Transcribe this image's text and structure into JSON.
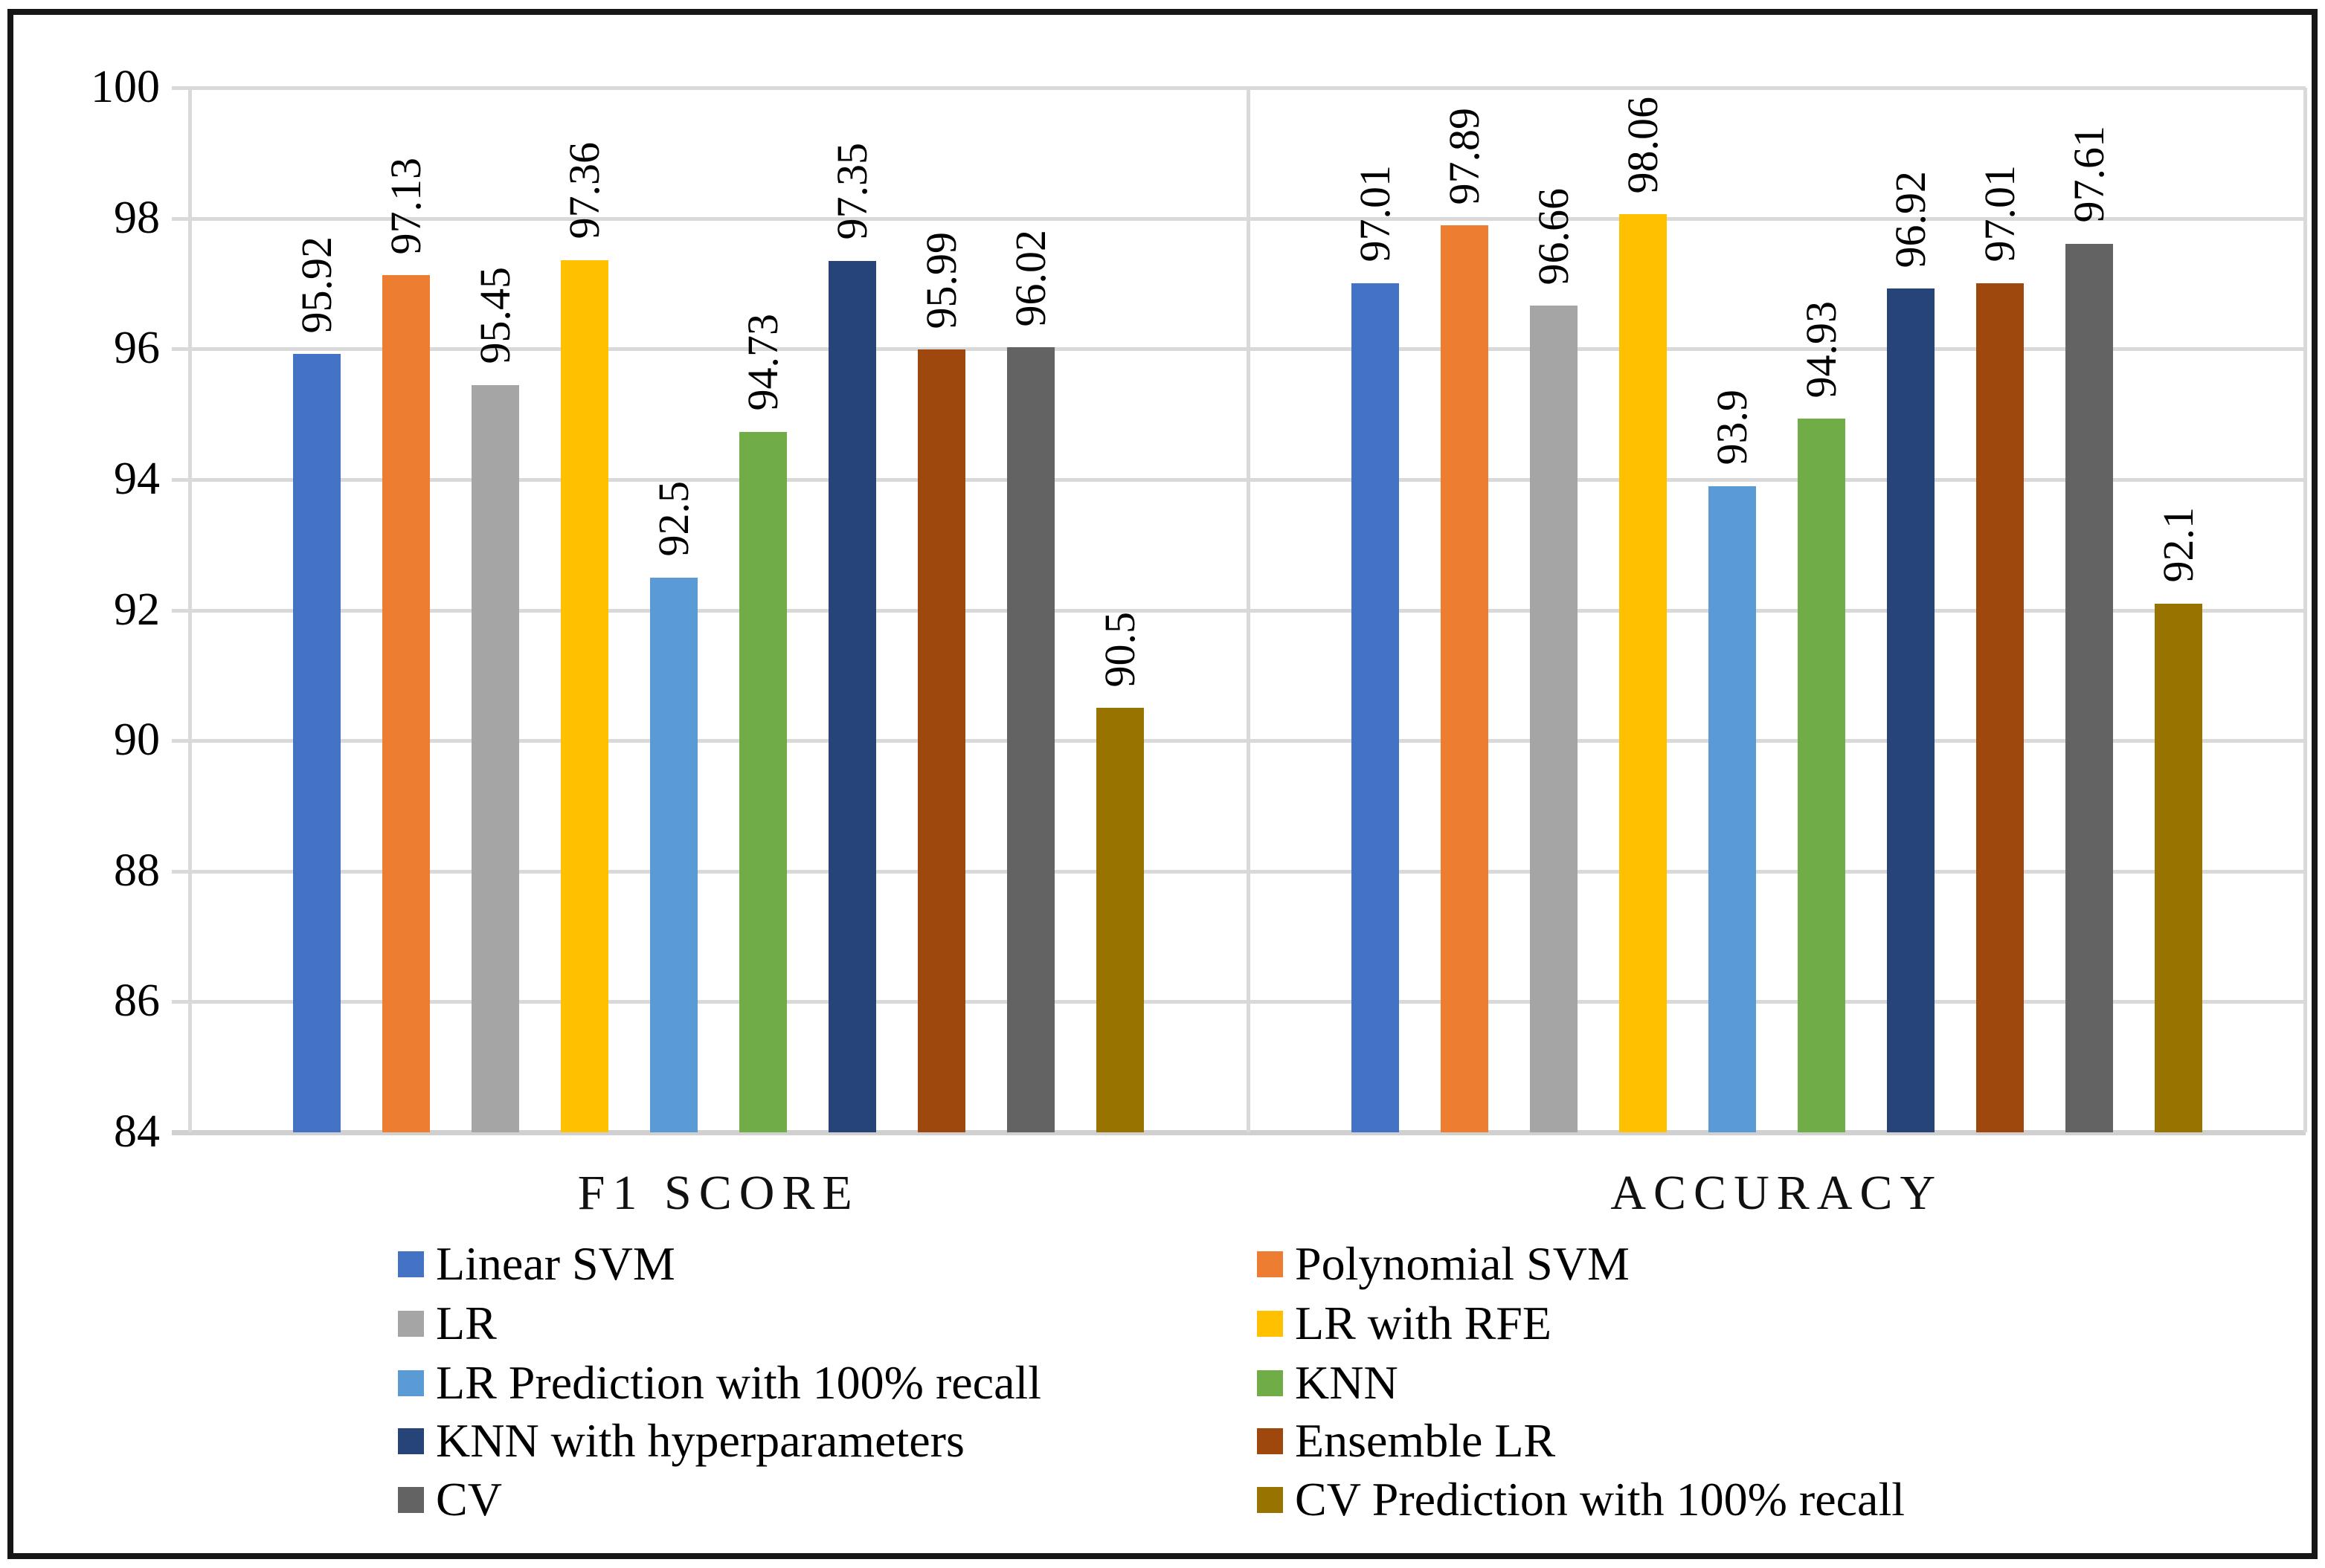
{
  "chart_data": {
    "type": "bar",
    "title": "",
    "categories": [
      "F1 SCORE",
      "ACCURACY"
    ],
    "y_axis": {
      "min": 84,
      "max": 100,
      "step": 2,
      "ticks": [
        84,
        86,
        88,
        90,
        92,
        94,
        96,
        98,
        100
      ]
    },
    "grid": true,
    "data_labels_visible": true,
    "data_label_rotation_deg": -90,
    "legend_position": "bottom-two-columns",
    "series": [
      {
        "name": "Linear SVM",
        "color": "#4472C4",
        "values": [
          95.92,
          97.01
        ]
      },
      {
        "name": "Polynomial SVM",
        "color": "#ED7D31",
        "values": [
          97.13,
          97.89
        ]
      },
      {
        "name": "LR",
        "color": "#A5A5A5",
        "values": [
          95.45,
          96.66
        ]
      },
      {
        "name": "LR with RFE",
        "color": "#FFC000",
        "values": [
          97.36,
          98.06
        ]
      },
      {
        "name": "LR Prediction with 100% recall",
        "color": "#5B9BD5",
        "values": [
          92.5,
          93.9
        ]
      },
      {
        "name": "KNN",
        "color": "#70AD47",
        "values": [
          94.73,
          94.93
        ]
      },
      {
        "name": "KNN with hyperparameters",
        "color": "#264478",
        "values": [
          97.35,
          96.92
        ]
      },
      {
        "name": "Ensemble LR",
        "color": "#9E480E",
        "values": [
          95.99,
          97.01
        ]
      },
      {
        "name": "CV",
        "color": "#636363",
        "values": [
          96.02,
          97.61
        ]
      },
      {
        "name": "CV Prediction with 100% recall",
        "color": "#997300",
        "values": [
          90.5,
          92.1
        ]
      }
    ],
    "colors": {
      "gridline": "#D9D9D9",
      "axis_line": "#D0D0D0",
      "frame_border": "#161616",
      "label_text": "#000000",
      "background": "#FFFFFF"
    }
  }
}
